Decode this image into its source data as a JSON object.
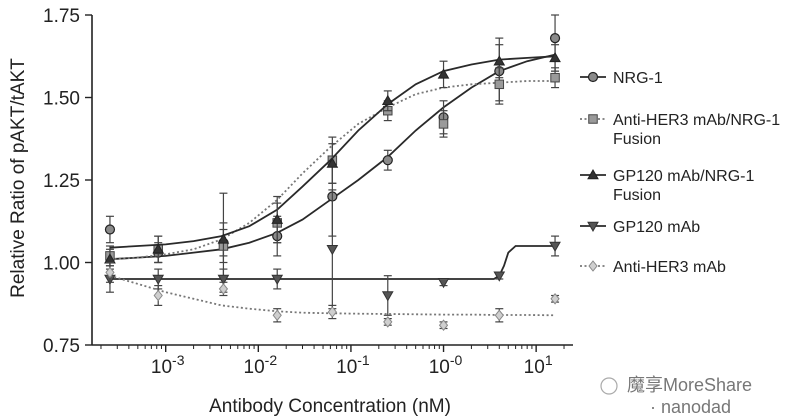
{
  "chart_data": {
    "type": "line",
    "xlabel": "Antibody Concentration (nM)",
    "ylabel": "Relative Ratio of pAKT/tAKT",
    "x_scale": "log",
    "xlim": [
      0.00016,
      25
    ],
    "ylim": [
      0.75,
      1.75
    ],
    "x_ticks": [
      {
        "value": 0.001,
        "base": "10",
        "exp": "-3"
      },
      {
        "value": 0.01,
        "base": "10",
        "exp": "-2"
      },
      {
        "value": 0.1,
        "base": "10",
        "exp": "-1"
      },
      {
        "value": 1,
        "base": "10",
        "exp": "-0"
      },
      {
        "value": 10,
        "base": "10",
        "exp": "1"
      }
    ],
    "y_ticks": [
      {
        "value": 0.75,
        "label": "0.75"
      },
      {
        "value": 1.0,
        "label": "1.00"
      },
      {
        "value": 1.25,
        "label": "1.25"
      },
      {
        "value": 1.5,
        "label": "1.50"
      },
      {
        "value": 1.75,
        "label": "1.75"
      }
    ],
    "x": [
      0.00025,
      0.00083,
      0.0042,
      0.016,
      0.063,
      0.25,
      1.0,
      4.0,
      16.0
    ],
    "legend_position": "right",
    "series": [
      {
        "name": "NRG-1",
        "marker": "circle",
        "line": "solid",
        "y": [
          1.1,
          1.03,
          1.06,
          1.08,
          1.2,
          1.31,
          1.44,
          1.58,
          1.68
        ],
        "err": [
          0.04,
          0.03,
          0.15,
          0.06,
          0.12,
          0.03,
          0.05,
          0.1,
          0.1
        ],
        "fit_x": [
          0.00025,
          0.0005,
          0.001,
          0.002,
          0.004,
          0.008,
          0.016,
          0.03,
          0.06,
          0.12,
          0.25,
          0.5,
          1.0,
          2.0,
          4.0,
          8.0,
          16.0
        ],
        "fit_y": [
          1.01,
          1.015,
          1.02,
          1.03,
          1.04,
          1.06,
          1.09,
          1.13,
          1.19,
          1.25,
          1.32,
          1.4,
          1.47,
          1.53,
          1.58,
          1.61,
          1.63
        ]
      },
      {
        "name": "Anti-HER3 mAb/NRG-1 Fusion",
        "marker": "square",
        "line": "dotted",
        "y": [
          1.02,
          1.04,
          1.05,
          1.12,
          1.31,
          1.46,
          1.42,
          1.54,
          1.56
        ],
        "err": [
          0.03,
          0.04,
          0.05,
          0.06,
          0.07,
          0.03,
          0.04,
          0.05,
          0.03
        ],
        "fit_x": [
          0.00025,
          0.0005,
          0.001,
          0.002,
          0.004,
          0.008,
          0.016,
          0.03,
          0.06,
          0.12,
          0.25,
          0.5,
          1.0,
          2.0,
          4.0,
          8.0,
          16.0
        ],
        "fit_y": [
          1.01,
          1.015,
          1.025,
          1.04,
          1.07,
          1.12,
          1.19,
          1.27,
          1.35,
          1.42,
          1.47,
          1.51,
          1.53,
          1.54,
          1.545,
          1.55,
          1.55
        ]
      },
      {
        "name": "GP120 mAb/NRG-1 Fusion",
        "marker": "triangle-up",
        "line": "solid",
        "y": [
          1.01,
          1.04,
          1.07,
          1.13,
          1.3,
          1.49,
          1.57,
          1.61,
          1.62
        ],
        "err": [
          0.03,
          0.04,
          0.05,
          0.07,
          0.06,
          0.03,
          0.04,
          0.05,
          0.04
        ],
        "fit_x": [
          0.00025,
          0.0005,
          0.001,
          0.002,
          0.004,
          0.008,
          0.016,
          0.03,
          0.06,
          0.12,
          0.25,
          0.5,
          1.0,
          2.0,
          4.0,
          8.0,
          16.0
        ],
        "fit_y": [
          1.045,
          1.05,
          1.055,
          1.065,
          1.08,
          1.11,
          1.16,
          1.23,
          1.31,
          1.4,
          1.48,
          1.54,
          1.58,
          1.6,
          1.615,
          1.62,
          1.625
        ]
      },
      {
        "name": "GP120 mAb",
        "marker": "triangle-down",
        "line": "solid",
        "y": [
          0.95,
          0.95,
          0.95,
          0.95,
          1.04,
          0.9,
          0.94,
          0.96,
          1.05
        ],
        "err": [
          0.04,
          0.03,
          0.03,
          0.03,
          0.18,
          0.06,
          0.01,
          0.01,
          0.03
        ],
        "fit_x": [
          0.00025,
          0.001,
          0.01,
          0.1,
          1.0,
          3.5,
          4.0,
          4.5,
          5.0,
          6.0,
          8.0,
          16.0
        ],
        "fit_y": [
          0.95,
          0.95,
          0.95,
          0.95,
          0.95,
          0.95,
          0.96,
          0.99,
          1.03,
          1.05,
          1.05,
          1.05
        ]
      },
      {
        "name": "Anti-HER3 mAb",
        "marker": "diamond",
        "line": "dotted",
        "y": [
          0.97,
          0.9,
          0.92,
          0.84,
          0.85,
          0.82,
          0.81,
          0.84,
          0.89
        ],
        "err": [
          0.03,
          0.03,
          0.02,
          0.02,
          0.02,
          0.01,
          0.01,
          0.02,
          0.01
        ],
        "fit_x": [
          0.00025,
          0.0005,
          0.001,
          0.002,
          0.004,
          0.008,
          0.016,
          0.03,
          0.06,
          0.12,
          0.25,
          0.5,
          1.0,
          2.0,
          4.0,
          8.0,
          16.0
        ],
        "fit_y": [
          0.96,
          0.935,
          0.91,
          0.89,
          0.87,
          0.86,
          0.852,
          0.848,
          0.846,
          0.845,
          0.844,
          0.843,
          0.842,
          0.842,
          0.841,
          0.841,
          0.84
        ]
      }
    ]
  },
  "watermark": {
    "text": "魔享MoreShare",
    "text2": "· nanodad"
  }
}
